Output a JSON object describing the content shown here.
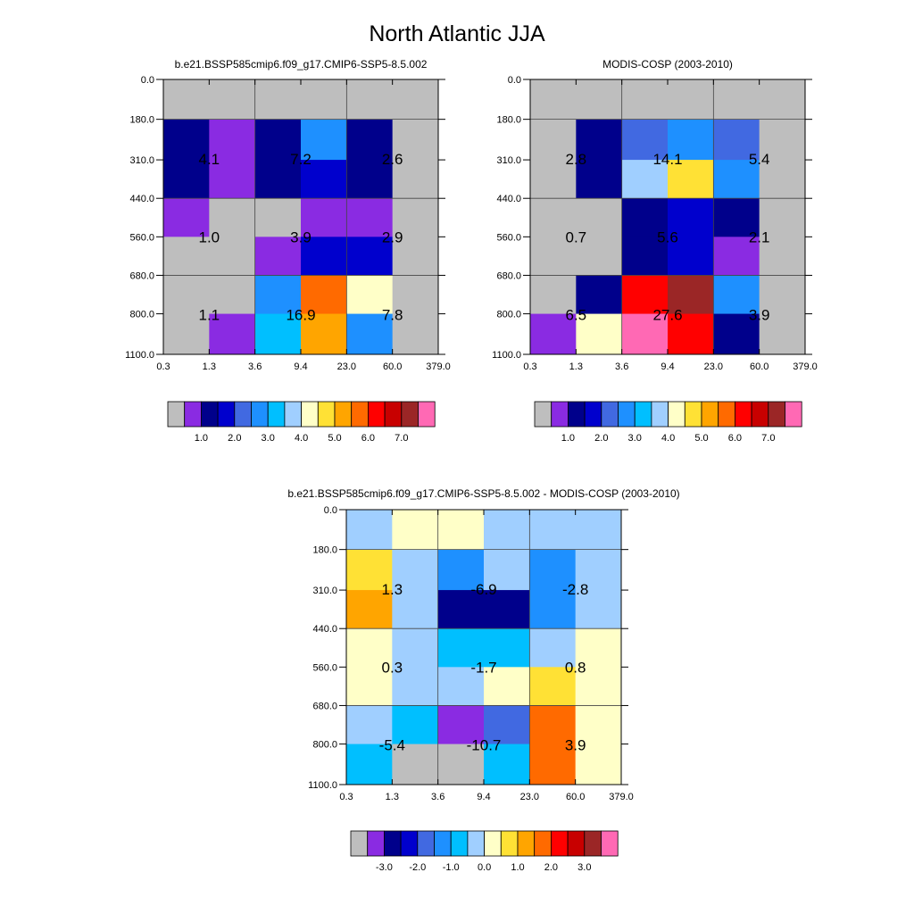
{
  "title": "North Atlantic JJA",
  "x_ticks": [
    "0.3",
    "1.3",
    "3.6",
    "9.4",
    "23.0",
    "60.0",
    "379.0"
  ],
  "y_ticks": [
    "0.0",
    "180.0",
    "310.0",
    "440.0",
    "560.0",
    "680.0",
    "800.0",
    "1100.0"
  ],
  "chart_data": [
    {
      "type": "heatmap",
      "title": "b.e21.BSSP585cmip6.f09_g17.CMIP6-SSP5-8.5.002",
      "xlabel": "",
      "ylabel": "",
      "x_edges": [
        "0.3",
        "1.3",
        "3.6",
        "9.4",
        "23.0",
        "60.0",
        "379.0"
      ],
      "y_edges": [
        "0.0",
        "180.0",
        "310.0",
        "440.0",
        "560.0",
        "680.0",
        "800.0",
        "1100.0"
      ],
      "cell_colors": [
        [
          "#bebebe",
          "#bebebe",
          "#bebebe",
          "#bebebe",
          "#bebebe",
          "#bebebe"
        ],
        [
          "#00008b",
          "#8a2be2",
          "#00008b",
          "#1e90ff",
          "#00008b",
          "#bebebe"
        ],
        [
          "#00008b",
          "#8a2be2",
          "#00008b",
          "#0000cd",
          "#00008b",
          "#bebebe"
        ],
        [
          "#8a2be2",
          "#bebebe",
          "#bebebe",
          "#8a2be2",
          "#8a2be2",
          "#bebebe"
        ],
        [
          "#bebebe",
          "#bebebe",
          "#8a2be2",
          "#0000cd",
          "#0000cd",
          "#bebebe"
        ],
        [
          "#bebebe",
          "#bebebe",
          "#1e90ff",
          "#ff6a00",
          "#ffffc8",
          "#bebebe"
        ],
        [
          "#bebebe",
          "#8a2be2",
          "#00bfff",
          "#ffa500",
          "#1e90ff",
          "#bebebe"
        ]
      ],
      "group_labels": [
        {
          "col": 0,
          "row": 1,
          "label": "4.1"
        },
        {
          "col": 1,
          "row": 1,
          "label": "7.2"
        },
        {
          "col": 2,
          "row": 1,
          "label": "2.6"
        },
        {
          "col": 0,
          "row": 2,
          "label": "1.0"
        },
        {
          "col": 1,
          "row": 2,
          "label": "3.9"
        },
        {
          "col": 2,
          "row": 2,
          "label": "2.9"
        },
        {
          "col": 0,
          "row": 3,
          "label": "1.1"
        },
        {
          "col": 1,
          "row": 3,
          "label": "16.9"
        },
        {
          "col": 2,
          "row": 3,
          "label": "7.8"
        }
      ],
      "colorbar": {
        "colors": [
          "#bebebe",
          "#8a2be2",
          "#00008b",
          "#0000cd",
          "#4169e1",
          "#1e90ff",
          "#00bfff",
          "#a0cfff",
          "#ffffc8",
          "#ffe135",
          "#ffa500",
          "#ff6a00",
          "#ff0000",
          "#c80000",
          "#9b2626",
          "#ff69b4"
        ],
        "labels": [
          "1.0",
          "2.0",
          "3.0",
          "4.0",
          "5.0",
          "6.0",
          "7.0"
        ],
        "label_start_boundary": 2,
        "label_step": 2
      }
    },
    {
      "type": "heatmap",
      "title": "MODIS-COSP (2003-2010)",
      "xlabel": "",
      "ylabel": "",
      "x_edges": [
        "0.3",
        "1.3",
        "3.6",
        "9.4",
        "23.0",
        "60.0",
        "379.0"
      ],
      "y_edges": [
        "0.0",
        "180.0",
        "310.0",
        "440.0",
        "560.0",
        "680.0",
        "800.0",
        "1100.0"
      ],
      "cell_colors": [
        [
          "#bebebe",
          "#bebebe",
          "#bebebe",
          "#bebebe",
          "#bebebe",
          "#bebebe"
        ],
        [
          "#bebebe",
          "#00008b",
          "#4169e1",
          "#1e90ff",
          "#4169e1",
          "#bebebe"
        ],
        [
          "#bebebe",
          "#00008b",
          "#a0cfff",
          "#ffe135",
          "#1e90ff",
          "#bebebe"
        ],
        [
          "#bebebe",
          "#bebebe",
          "#00008b",
          "#0000cd",
          "#00008b",
          "#bebebe"
        ],
        [
          "#bebebe",
          "#bebebe",
          "#00008b",
          "#0000cd",
          "#8a2be2",
          "#bebebe"
        ],
        [
          "#bebebe",
          "#00008b",
          "#ff0000",
          "#9b2626",
          "#1e90ff",
          "#bebebe"
        ],
        [
          "#8a2be2",
          "#ffffc8",
          "#ff69b4",
          "#ff0000",
          "#00008b",
          "#bebebe"
        ]
      ],
      "group_labels": [
        {
          "col": 0,
          "row": 1,
          "label": "2.8"
        },
        {
          "col": 1,
          "row": 1,
          "label": "14.1"
        },
        {
          "col": 2,
          "row": 1,
          "label": "5.4"
        },
        {
          "col": 0,
          "row": 2,
          "label": "0.7"
        },
        {
          "col": 1,
          "row": 2,
          "label": "5.6"
        },
        {
          "col": 2,
          "row": 2,
          "label": "2.1"
        },
        {
          "col": 0,
          "row": 3,
          "label": "6.5"
        },
        {
          "col": 1,
          "row": 3,
          "label": "27.6"
        },
        {
          "col": 2,
          "row": 3,
          "label": "3.9"
        }
      ],
      "colorbar": {
        "colors": [
          "#bebebe",
          "#8a2be2",
          "#00008b",
          "#0000cd",
          "#4169e1",
          "#1e90ff",
          "#00bfff",
          "#a0cfff",
          "#ffffc8",
          "#ffe135",
          "#ffa500",
          "#ff6a00",
          "#ff0000",
          "#c80000",
          "#9b2626",
          "#ff69b4"
        ],
        "labels": [
          "1.0",
          "2.0",
          "3.0",
          "4.0",
          "5.0",
          "6.0",
          "7.0"
        ],
        "label_start_boundary": 2,
        "label_step": 2
      }
    },
    {
      "type": "heatmap",
      "title": "b.e21.BSSP585cmip6.f09_g17.CMIP6-SSP5-8.5.002 - MODIS-COSP (2003-2010)",
      "xlabel": "",
      "ylabel": "",
      "x_edges": [
        "0.3",
        "1.3",
        "3.6",
        "9.4",
        "23.0",
        "60.0",
        "379.0"
      ],
      "y_edges": [
        "0.0",
        "180.0",
        "310.0",
        "440.0",
        "560.0",
        "680.0",
        "800.0",
        "1100.0"
      ],
      "cell_colors": [
        [
          "#a0cfff",
          "#ffffc8",
          "#ffffc8",
          "#a0cfff",
          "#a0cfff",
          "#a0cfff"
        ],
        [
          "#ffe135",
          "#a0cfff",
          "#1e90ff",
          "#a0cfff",
          "#1e90ff",
          "#a0cfff"
        ],
        [
          "#ffa500",
          "#a0cfff",
          "#00008b",
          "#00008b",
          "#1e90ff",
          "#a0cfff"
        ],
        [
          "#ffffc8",
          "#a0cfff",
          "#00bfff",
          "#00bfff",
          "#a0cfff",
          "#ffffc8"
        ],
        [
          "#ffffc8",
          "#a0cfff",
          "#a0cfff",
          "#ffffc8",
          "#ffe135",
          "#ffffc8"
        ],
        [
          "#a0cfff",
          "#00bfff",
          "#8a2be2",
          "#4169e1",
          "#ff6a00",
          "#ffffc8"
        ],
        [
          "#00bfff",
          "#bebebe",
          "#bebebe",
          "#00bfff",
          "#ff6a00",
          "#ffffc8"
        ]
      ],
      "group_labels": [
        {
          "col": 0,
          "row": 1,
          "label": "1.3"
        },
        {
          "col": 1,
          "row": 1,
          "label": "-6.9"
        },
        {
          "col": 2,
          "row": 1,
          "label": "-2.8"
        },
        {
          "col": 0,
          "row": 2,
          "label": "0.3"
        },
        {
          "col": 1,
          "row": 2,
          "label": "-1.7"
        },
        {
          "col": 2,
          "row": 2,
          "label": "0.8"
        },
        {
          "col": 0,
          "row": 3,
          "label": "-5.4"
        },
        {
          "col": 1,
          "row": 3,
          "label": "-10.7"
        },
        {
          "col": 2,
          "row": 3,
          "label": "3.9"
        }
      ],
      "colorbar": {
        "colors": [
          "#bebebe",
          "#8a2be2",
          "#00008b",
          "#0000cd",
          "#4169e1",
          "#1e90ff",
          "#00bfff",
          "#a0cfff",
          "#ffffc8",
          "#ffe135",
          "#ffa500",
          "#ff6a00",
          "#ff0000",
          "#c80000",
          "#9b2626",
          "#ff69b4"
        ],
        "labels": [
          "-3.0",
          "-2.0",
          "-1.0",
          "0.0",
          "1.0",
          "2.0",
          "3.0"
        ],
        "label_start_boundary": 2,
        "label_step": 2
      }
    }
  ]
}
